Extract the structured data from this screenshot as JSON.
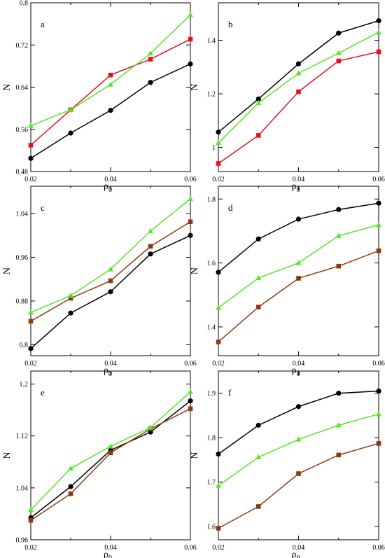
{
  "series_colors": {
    "black": "#000000",
    "red": "#e8101a",
    "green": "#55e62b",
    "brown": "#8b3a0f"
  },
  "chart_data": [
    {
      "type": "line",
      "panel": "a",
      "xlabel": "ρ",
      "xlabel_sub": "0",
      "ylabel": "N",
      "xlim": [
        0.02,
        0.06
      ],
      "ylim": [
        0.48,
        0.8
      ],
      "x": [
        0.02,
        0.03,
        0.04,
        0.05,
        0.06
      ],
      "xticks": [
        "0.02",
        "0.04",
        "0.06"
      ],
      "xtick_values": [
        0.02,
        0.04,
        0.06
      ],
      "yticks": [
        "0.48",
        "0.56",
        "0.64",
        "0.72",
        "0.8"
      ],
      "ytick_values": [
        0.48,
        0.56,
        0.64,
        0.72,
        0.8
      ],
      "series": [
        {
          "color": "#000000",
          "marker": "circle",
          "values": [
            0.505,
            0.553,
            0.596,
            0.649,
            0.684
          ]
        },
        {
          "color": "#e8101a",
          "marker": "square",
          "values": [
            0.53,
            0.597,
            0.663,
            0.693,
            0.731
          ]
        },
        {
          "color": "#55e62b",
          "marker": "triangle",
          "values": [
            0.567,
            0.597,
            0.645,
            0.704,
            0.777
          ]
        }
      ]
    },
    {
      "type": "line",
      "panel": "b",
      "xlabel": "ρ",
      "xlabel_sub": "0",
      "ylabel": "N",
      "xlim": [
        0.02,
        0.06
      ],
      "ylim": [
        0.91,
        1.54
      ],
      "x": [
        0.02,
        0.03,
        0.04,
        0.05,
        0.06
      ],
      "xticks": [
        "0.02",
        "0.04",
        "0.06"
      ],
      "xtick_values": [
        0.02,
        0.04,
        0.06
      ],
      "yticks": [
        "1",
        "1.2",
        "1.4"
      ],
      "ytick_values": [
        1.0,
        1.2,
        1.4
      ],
      "series": [
        {
          "color": "#000000",
          "marker": "circle",
          "values": [
            1.057,
            1.181,
            1.312,
            1.427,
            1.473
          ]
        },
        {
          "color": "#55e62b",
          "marker": "triangle",
          "values": [
            1.017,
            1.166,
            1.277,
            1.352,
            1.43
          ]
        },
        {
          "color": "#e8101a",
          "marker": "square",
          "values": [
            0.94,
            1.045,
            1.208,
            1.323,
            1.357
          ]
        }
      ]
    },
    {
      "type": "line",
      "panel": "c",
      "xlabel": "ρ",
      "xlabel_sub": "0",
      "ylabel": "N",
      "xlim": [
        0.02,
        0.06
      ],
      "ylim": [
        0.78,
        1.09
      ],
      "x": [
        0.02,
        0.03,
        0.04,
        0.05,
        0.06
      ],
      "xticks": [
        "0.02",
        "0.04",
        "0.06"
      ],
      "xtick_values": [
        0.02,
        0.04,
        0.06
      ],
      "yticks": [
        "0.8",
        "0.88",
        "0.96",
        "1.04"
      ],
      "ytick_values": [
        0.8,
        0.88,
        0.96,
        1.04
      ],
      "series": [
        {
          "color": "#000000",
          "marker": "circle",
          "values": [
            0.793,
            0.858,
            0.897,
            0.966,
            1.0
          ]
        },
        {
          "color": "#8b3a0f",
          "marker": "square",
          "values": [
            0.843,
            0.885,
            0.917,
            0.98,
            1.025
          ]
        },
        {
          "color": "#55e62b",
          "marker": "triangle",
          "values": [
            0.859,
            0.89,
            0.938,
            1.008,
            1.067
          ]
        }
      ]
    },
    {
      "type": "line",
      "panel": "d",
      "xlabel": "ρ",
      "xlabel_sub": "0",
      "ylabel": "N",
      "xlim": [
        0.02,
        0.06
      ],
      "ylim": [
        1.31,
        1.84
      ],
      "x": [
        0.02,
        0.03,
        0.04,
        0.05,
        0.06
      ],
      "xticks": [
        "0.02",
        "0.04",
        "0.06"
      ],
      "xtick_values": [
        0.02,
        0.04,
        0.06
      ],
      "yticks": [
        "1.4",
        "1.6",
        "1.8"
      ],
      "ytick_values": [
        1.4,
        1.6,
        1.8
      ],
      "series": [
        {
          "color": "#000000",
          "marker": "circle",
          "values": [
            1.571,
            1.675,
            1.737,
            1.767,
            1.787
          ]
        },
        {
          "color": "#55e62b",
          "marker": "triangle",
          "values": [
            1.46,
            1.553,
            1.6,
            1.685,
            1.719
          ]
        },
        {
          "color": "#8b3a0f",
          "marker": "square",
          "values": [
            1.353,
            1.462,
            1.552,
            1.59,
            1.638
          ]
        }
      ]
    },
    {
      "type": "line",
      "panel": "e",
      "xlabel": "ρ",
      "xlabel_sub": "0",
      "ylabel": "N",
      "xlim": [
        0.02,
        0.06
      ],
      "ylim": [
        0.96,
        1.22
      ],
      "x": [
        0.02,
        0.03,
        0.04,
        0.05,
        0.06
      ],
      "xticks": [
        "0.02",
        "0.04",
        "0.06"
      ],
      "xtick_values": [
        0.02,
        0.04,
        0.06
      ],
      "yticks": [
        "0.96",
        "1.04",
        "1.12",
        "1.2"
      ],
      "ytick_values": [
        0.96,
        1.04,
        1.12,
        1.2
      ],
      "series": [
        {
          "color": "#000000",
          "marker": "circle",
          "values": [
            0.994,
            1.042,
            1.098,
            1.126,
            1.174
          ]
        },
        {
          "color": "#8b3a0f",
          "marker": "square",
          "values": [
            0.99,
            1.031,
            1.094,
            1.131,
            1.162
          ]
        },
        {
          "color": "#55e62b",
          "marker": "triangle",
          "values": [
            1.006,
            1.07,
            1.104,
            1.133,
            1.188
          ]
        }
      ]
    },
    {
      "type": "line",
      "panel": "f",
      "xlabel": "ρ",
      "xlabel_sub": "0",
      "ylabel": "N",
      "xlim": [
        0.02,
        0.06
      ],
      "ylim": [
        1.57,
        1.95
      ],
      "x": [
        0.02,
        0.03,
        0.04,
        0.05,
        0.06
      ],
      "xticks": [
        "0.02",
        "0.04",
        "0.06"
      ],
      "xtick_values": [
        0.02,
        0.04,
        0.06
      ],
      "yticks": [
        "1.6",
        "1.7",
        "1.8",
        "1.9"
      ],
      "ytick_values": [
        1.6,
        1.7,
        1.8,
        1.9
      ],
      "series": [
        {
          "color": "#000000",
          "marker": "circle",
          "values": [
            1.763,
            1.828,
            1.87,
            1.9,
            1.905
          ]
        },
        {
          "color": "#55e62b",
          "marker": "triangle",
          "values": [
            1.692,
            1.756,
            1.796,
            1.828,
            1.853
          ]
        },
        {
          "color": "#8b3a0f",
          "marker": "square",
          "values": [
            1.596,
            1.645,
            1.719,
            1.761,
            1.787
          ]
        }
      ]
    }
  ]
}
